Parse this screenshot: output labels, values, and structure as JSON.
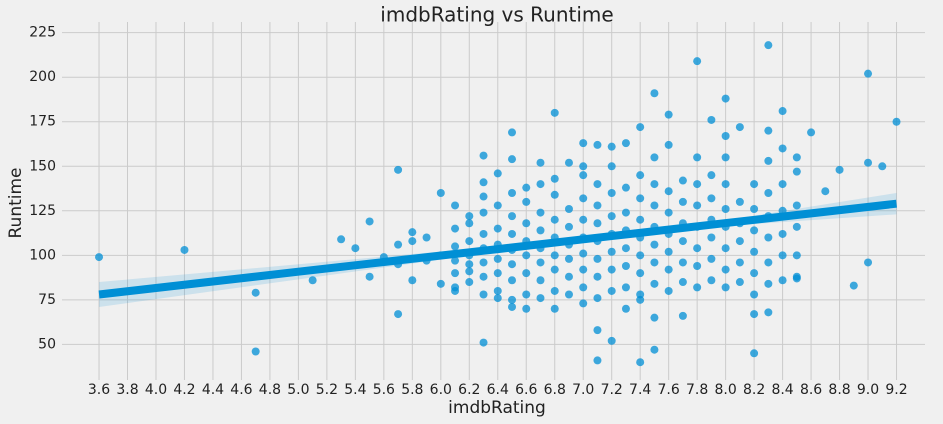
{
  "chart_data": {
    "type": "scatter",
    "title": "imdbRating vs Runtime",
    "x_label": "imdbRating",
    "y_label": "Runtime",
    "color": "#008fd5",
    "grid": true,
    "xlim": [
      3.34,
      9.4
    ],
    "ylim": [
      30,
      231
    ],
    "xticks": [
      3.6,
      3.8,
      {
        "value": 4,
        "label": "4.0"
      },
      4.2,
      4.4,
      4.6,
      4.8,
      {
        "value": 5,
        "label": "5.0"
      },
      5.2,
      5.4,
      5.6,
      5.8,
      {
        "value": 6,
        "label": "6.0"
      },
      6.2,
      6.4,
      6.6,
      6.8,
      {
        "value": 7,
        "label": "7.0"
      },
      7.2,
      7.4,
      7.6,
      7.8,
      {
        "value": 8,
        "label": "8.0"
      },
      8.2,
      8.4,
      8.6,
      8.8,
      {
        "value": 9,
        "label": "9.0"
      },
      9.2
    ],
    "yticks": [
      50,
      75,
      100,
      125,
      150,
      175,
      200,
      225
    ],
    "x": [
      3.6,
      4.2,
      4.7,
      4.7,
      5.1,
      5.3,
      5.4,
      5.5,
      5.5,
      5.6,
      5.7,
      5.7,
      5.7,
      5.7,
      5.8,
      5.8,
      5.8,
      5.9,
      5.9,
      6.0,
      6.0,
      6.0,
      6.1,
      6.1,
      6.2,
      6.2,
      6.3,
      6.3,
      6.3,
      6.4,
      6.4,
      6.5,
      6.5,
      6.5,
      6.6,
      6.6,
      6.7,
      6.8,
      6.8,
      6.8,
      6.9,
      7.0,
      7.0,
      7.0,
      7.1,
      7.1,
      7.1,
      7.2,
      7.2,
      7.3,
      7.3,
      7.4,
      7.4,
      7.4,
      7.5,
      7.5,
      7.5,
      7.6,
      7.6,
      7.7,
      7.8,
      7.8,
      7.9,
      8.0,
      8.0,
      8.1,
      8.2,
      8.2,
      8.3,
      8.3,
      8.3,
      8.4,
      8.4,
      8.5,
      8.5,
      8.6,
      8.7,
      8.8,
      8.9,
      9.0,
      9.0,
      9.0,
      9.1,
      9.2,
      6.1,
      6.1,
      6.1,
      6.1,
      6.1,
      6.2,
      6.2,
      6.2,
      6.2,
      6.2,
      6.3,
      6.3,
      6.3,
      6.3,
      6.3,
      6.3,
      6.3,
      6.4,
      6.4,
      6.4,
      6.4,
      6.4,
      6.4,
      6.5,
      6.5,
      6.5,
      6.5,
      6.5,
      6.5,
      6.5,
      6.6,
      6.6,
      6.6,
      6.6,
      6.6,
      6.6,
      6.7,
      6.7,
      6.7,
      6.7,
      6.7,
      6.7,
      6.7,
      6.8,
      6.8,
      6.8,
      6.8,
      6.8,
      6.8,
      6.9,
      6.9,
      6.9,
      6.9,
      6.9,
      6.9,
      7.0,
      7.0,
      7.0,
      7.0,
      7.0,
      7.0,
      7.0,
      7.1,
      7.1,
      7.1,
      7.1,
      7.1,
      7.1,
      7.1,
      7.2,
      7.2,
      7.2,
      7.2,
      7.2,
      7.2,
      7.2,
      7.3,
      7.3,
      7.3,
      7.3,
      7.3,
      7.3,
      7.4,
      7.4,
      7.4,
      7.4,
      7.4,
      7.4,
      7.4,
      7.5,
      7.5,
      7.5,
      7.5,
      7.5,
      7.5,
      7.5,
      7.6,
      7.6,
      7.6,
      7.6,
      7.6,
      7.6,
      7.7,
      7.7,
      7.7,
      7.7,
      7.7,
      7.7,
      7.8,
      7.8,
      7.8,
      7.8,
      7.8,
      7.8,
      7.9,
      7.9,
      7.9,
      7.9,
      7.9,
      7.9,
      8.0,
      8.0,
      8.0,
      8.0,
      8.0,
      8.0,
      8.0,
      8.1,
      8.1,
      8.1,
      8.1,
      8.1,
      8.2,
      8.2,
      8.2,
      8.2,
      8.2,
      8.2,
      8.3,
      8.3,
      8.3,
      8.3,
      8.3,
      8.3,
      8.4,
      8.4,
      8.4,
      8.4,
      8.4,
      8.5,
      8.5,
      8.5,
      8.5,
      8.5
    ],
    "values": [
      99,
      103,
      79,
      46,
      86,
      109,
      104,
      119,
      88,
      99,
      148,
      67,
      106,
      95,
      113,
      86,
      108,
      110,
      97,
      135,
      84,
      100,
      128,
      80,
      118,
      91,
      156,
      51,
      141,
      146,
      76,
      169,
      154,
      71,
      70,
      138,
      152,
      180,
      70,
      143,
      152,
      163,
      150,
      73,
      162,
      58,
      41,
      52,
      161,
      163,
      70,
      172,
      40,
      75,
      191,
      47,
      65,
      179,
      162,
      66,
      209,
      155,
      176,
      188,
      167,
      172,
      67,
      45,
      218,
      170,
      68,
      181,
      160,
      155,
      87,
      169,
      136,
      148,
      83,
      202,
      152,
      96,
      150,
      175,
      82,
      90,
      97,
      105,
      115,
      85,
      95,
      100,
      108,
      122,
      78,
      88,
      96,
      104,
      112,
      124,
      133,
      80,
      90,
      98,
      106,
      115,
      128,
      75,
      86,
      95,
      103,
      112,
      122,
      135,
      78,
      90,
      100,
      108,
      118,
      130,
      76,
      86,
      96,
      104,
      114,
      124,
      140,
      80,
      92,
      100,
      110,
      120,
      134,
      78,
      88,
      98,
      106,
      116,
      126,
      82,
      92,
      101,
      110,
      120,
      132,
      145,
      76,
      88,
      98,
      108,
      118,
      128,
      140,
      80,
      92,
      102,
      112,
      122,
      135,
      150,
      82,
      94,
      104,
      114,
      124,
      138,
      78,
      90,
      100,
      110,
      120,
      132,
      145,
      84,
      96,
      106,
      116,
      128,
      140,
      155,
      80,
      92,
      102,
      112,
      124,
      136,
      85,
      96,
      108,
      118,
      130,
      142,
      82,
      94,
      104,
      116,
      128,
      140,
      86,
      98,
      110,
      120,
      132,
      145,
      82,
      92,
      104,
      116,
      126,
      140,
      155,
      85,
      96,
      108,
      118,
      130,
      78,
      90,
      102,
      114,
      126,
      140,
      84,
      96,
      110,
      122,
      135,
      153,
      86,
      100,
      112,
      125,
      140,
      88,
      100,
      116,
      128,
      147
    ],
    "regression": {
      "x": [
        3.6,
        5.0,
        6.4,
        7.2,
        8.0,
        9.2
      ],
      "y": [
        78,
        90.8,
        103.5,
        110.8,
        118.1,
        129
      ],
      "ci_lower": [
        71,
        86.5,
        102,
        109.8,
        116.5,
        123
      ],
      "ci_upper": [
        85,
        95,
        105,
        111.8,
        119.7,
        135
      ]
    }
  }
}
